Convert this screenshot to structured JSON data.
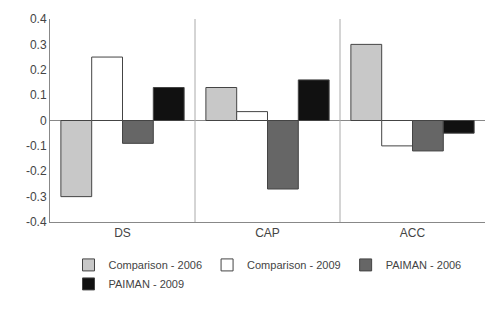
{
  "chart_data": {
    "type": "bar",
    "categories": [
      "DS",
      "CAP",
      "ACC"
    ],
    "series": [
      {
        "name": "Comparison - 2006",
        "color": "#c8c8c8",
        "values": [
          -0.3,
          0.13,
          0.3
        ]
      },
      {
        "name": "Comparison - 2009",
        "color": "#ffffff",
        "values": [
          0.25,
          0.035,
          -0.1
        ]
      },
      {
        "name": "PAIMAN - 2006",
        "color": "#666666",
        "values": [
          -0.09,
          -0.27,
          -0.12
        ]
      },
      {
        "name": "PAIMAN - 2009",
        "color": "#111111",
        "values": [
          0.13,
          0.16,
          -0.05
        ]
      }
    ],
    "ylim": [
      -0.4,
      0.4
    ],
    "yticks": [
      -0.4,
      -0.3,
      -0.2,
      -0.1,
      0,
      0.1,
      0.2,
      0.3,
      0.4
    ],
    "grid": false,
    "legend": "bottom"
  }
}
